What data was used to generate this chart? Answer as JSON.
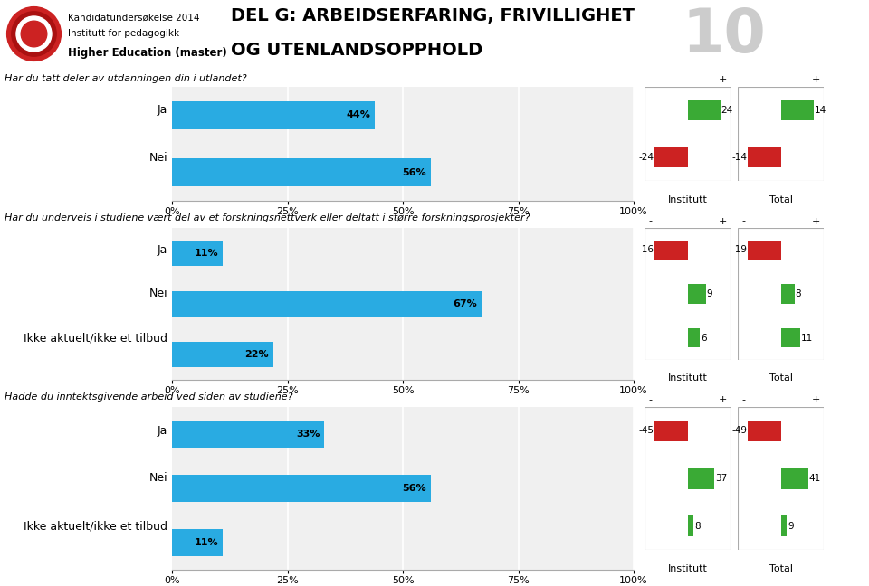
{
  "header_line1": "Kandidatundersøkelse 2014",
  "header_line2": "Institutt for pedagogikk",
  "header_line3": "Higher Education (master)",
  "title_main": "DEL G: ARBEIDSERFARING, FRIVILLIGHET",
  "title_sub": "OG UTENLANDSOPPHOLD",
  "section_number": "10",
  "bg_color": "#ffffff",
  "header_bg": "#ececec",
  "cyan_bar": "#29abe2",
  "green_bar": "#3aaa35",
  "red_bar": "#cc2222",
  "ramboll_bg": "#00b5cc",
  "text_color": "#000000",
  "q1_text": "Har du tatt deler av utdanningen din i utlandet?",
  "q1_labels": [
    "Ja",
    "Nei"
  ],
  "q1_values": [
    44,
    56
  ],
  "q1_institutt": [
    24,
    -24
  ],
  "q1_total": [
    14,
    -14
  ],
  "q2_text": "Har du underveis i studiene vært del av et forskningsnettverk eller deltatt i større forskningsprosjekter?",
  "q2_labels": [
    "Ja",
    "Nei",
    "Ikke aktuelt/ikke et tilbud"
  ],
  "q2_values": [
    11,
    67,
    22
  ],
  "q2_institutt": [
    -16,
    9,
    6
  ],
  "q2_total": [
    -19,
    8,
    11
  ],
  "q3_text": "Hadde du inntektsgivende arbeid ved siden av studiene?",
  "q3_labels": [
    "Ja",
    "Nei",
    "Ikke aktuelt/ikke et tilbud"
  ],
  "q3_values": [
    33,
    56,
    11
  ],
  "q3_institutt": [
    -45,
    37,
    8
  ],
  "q3_total": [
    -49,
    41,
    9
  ]
}
